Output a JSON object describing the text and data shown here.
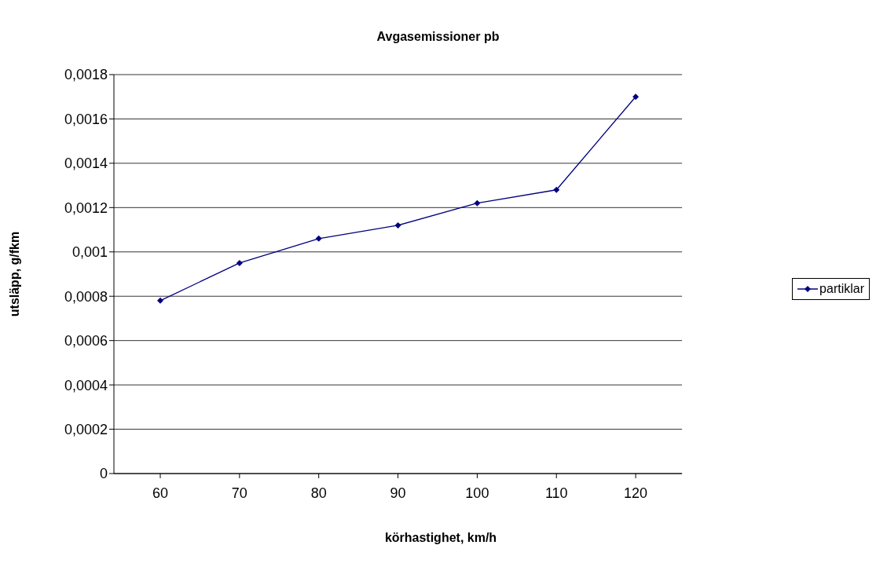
{
  "chart_data": {
    "type": "line",
    "title": "Avgasemissioner pb",
    "xlabel": "körhastighet, km/h",
    "ylabel": "utsläpp, g/fkm",
    "categories": [
      "60",
      "70",
      "80",
      "90",
      "100",
      "110",
      "120"
    ],
    "series": [
      {
        "name": "partiklar",
        "color": "#000080",
        "values": [
          0.00078,
          0.00095,
          0.00106,
          0.00112,
          0.00122,
          0.00128,
          0.0017
        ]
      }
    ],
    "ylim": [
      0,
      0.0018
    ],
    "yticks": [
      0,
      {
        "value": 0.0002,
        "label": "0,0002"
      },
      {
        "value": 0.0004,
        "label": "0,0004"
      },
      {
        "value": 0.0006,
        "label": "0,0006"
      },
      {
        "value": 0.0008,
        "label": "0,0008"
      },
      {
        "value": 0.001,
        "label": "0,001"
      },
      {
        "value": 0.0012,
        "label": "0,0012"
      },
      {
        "value": 0.0014,
        "label": "0,0014"
      },
      {
        "value": 0.0016,
        "label": "0,0016"
      },
      {
        "value": 0.0018,
        "label": "0,0018"
      }
    ],
    "grid": "y",
    "legend": "right",
    "marker": "diamond",
    "line_style": "solid"
  }
}
